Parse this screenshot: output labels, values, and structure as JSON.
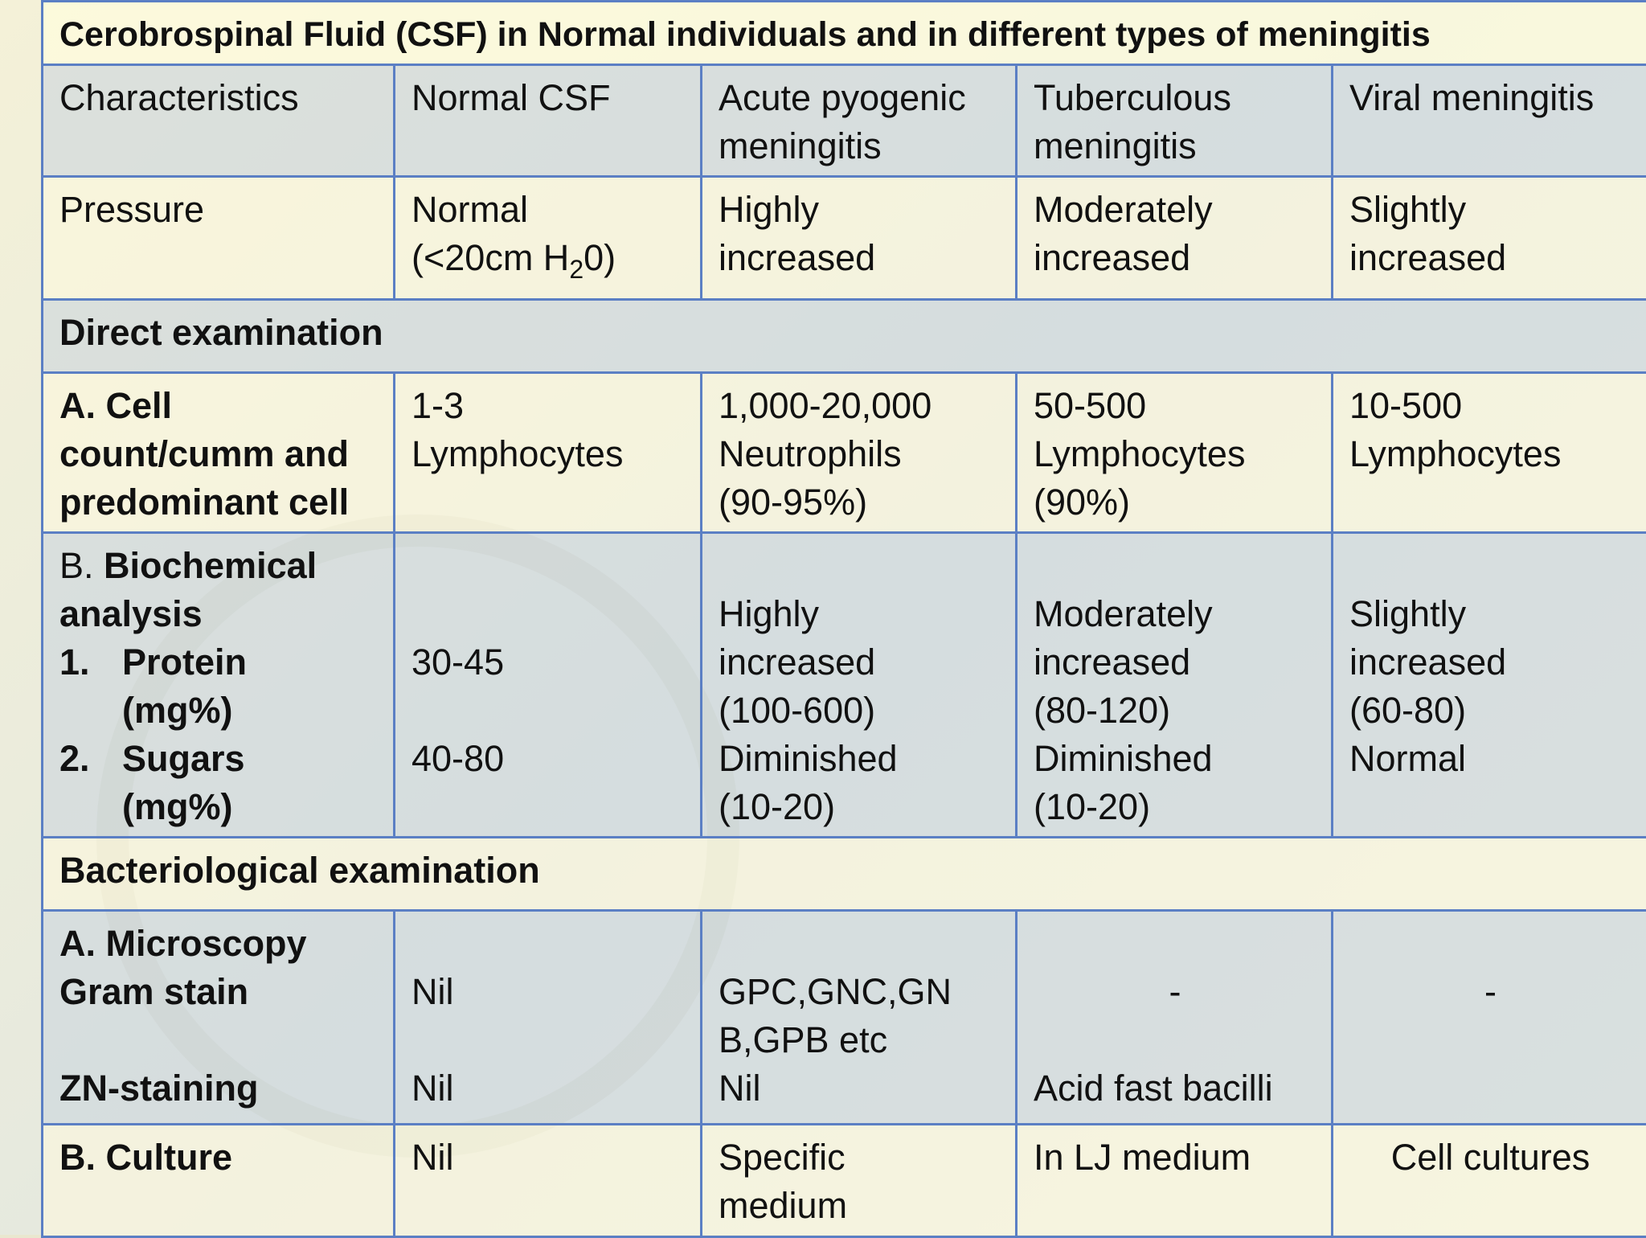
{
  "title": "Cerobrospinal Fluid (CSF) in Normal individuals and in different types of meningitis",
  "header": {
    "col1": "Characteristics",
    "col2": "Normal CSF",
    "col3_l1": "Acute pyogenic",
    "col3_l2": "meningitis",
    "col4_l1": "Tuberculous",
    "col4_l2": "meningitis",
    "col5": "Viral meningitis"
  },
  "pressure": {
    "label": "Pressure",
    "normal_l1": "Normal",
    "normal_l2a": "(<20cm H",
    "normal_sub": "2",
    "normal_l2b": "0)",
    "pyogenic_l1": "Highly",
    "pyogenic_l2": "increased",
    "tb_l1": "Moderately",
    "tb_l2": "increased",
    "viral_l1": "Slightly",
    "viral_l2": "increased"
  },
  "section_direct": "Direct examination",
  "cell_count": {
    "label_l1": "A. Cell",
    "label_l2": "count/cumm and",
    "label_l3": "predominant cell",
    "normal_l1": "1-3",
    "normal_l2": "Lymphocytes",
    "pyogenic_l1": "1,000-20,000",
    "pyogenic_l2": "Neutrophils",
    "pyogenic_l3": "(90-95%)",
    "tb_l1": "50-500",
    "tb_l2": "Lymphocytes",
    "tb_l3": "(90%)",
    "viral_l1": "10-500",
    "viral_l2": "Lymphocytes"
  },
  "biochem": {
    "label_prefix": "B. ",
    "label_bold_l1": "Biochemical",
    "label_bold_l2": "analysis",
    "item1_num": "1.",
    "item1_l1": "Protein",
    "item1_l2": "(mg%)",
    "item2_num": "2.",
    "item2_l1": "Sugars",
    "item2_l2": "(mg%)",
    "normal_protein": "30-45",
    "normal_sugar": "40-80",
    "pyogenic_l1": "Highly",
    "pyogenic_l2": "increased",
    "pyogenic_l3": "(100-600)",
    "pyogenic_l4": "Diminished",
    "pyogenic_l5": "(10-20)",
    "tb_l1": "Moderately",
    "tb_l2": "increased",
    "tb_l3": "(80-120)",
    "tb_l4": "Diminished",
    "tb_l5": "(10-20)",
    "viral_l1": "Slightly",
    "viral_l2": "increased",
    "viral_l3": "(60-80)",
    "viral_l4": "Normal"
  },
  "section_bact": "Bacteriological examination",
  "microscopy": {
    "label_l1": "A.  Microscopy",
    "label_l2": "Gram stain",
    "label_l3": "ZN-staining",
    "normal_gram": "Nil",
    "normal_zn": "Nil",
    "pyogenic_l1": "GPC,GNC,GN",
    "pyogenic_l2": "B,GPB etc",
    "pyogenic_l3": "Nil",
    "tb_gram": "-",
    "tb_zn": "Acid fast bacilli",
    "viral_gram": "-"
  },
  "culture": {
    "label": "B. Culture",
    "normal": "Nil",
    "pyogenic_l1": "Specific",
    "pyogenic_l2": "medium",
    "tb": "In LJ medium",
    "viral": "Cell cultures"
  }
}
